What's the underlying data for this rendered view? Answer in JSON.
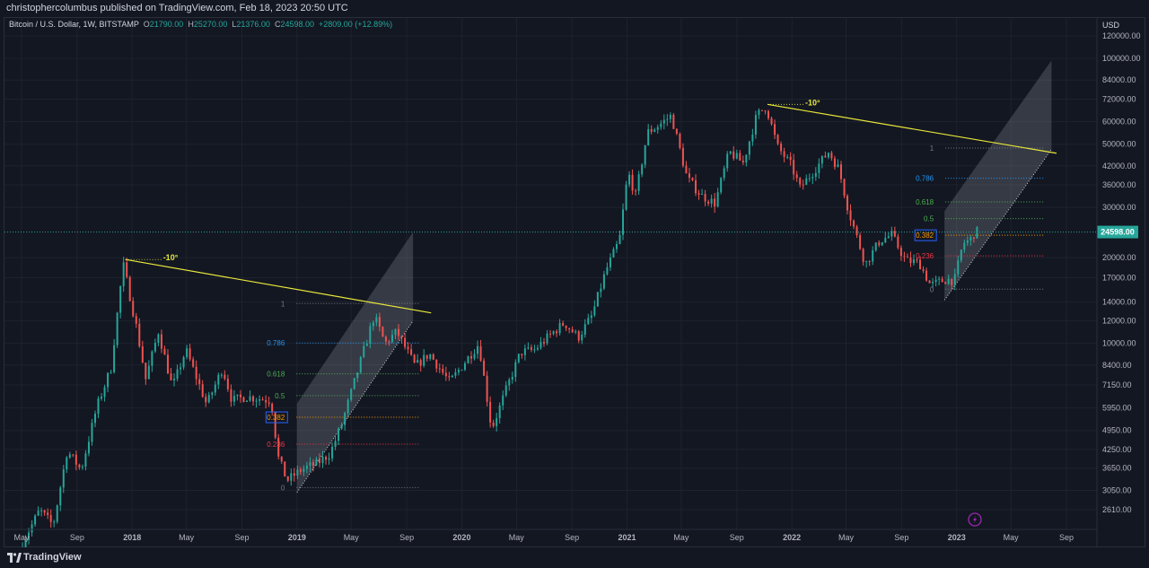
{
  "header": {
    "publisher_line": "christophercolumbus published on TradingView.com, Feb 18, 2023 20:50 UTC"
  },
  "symbol_legend": {
    "symbol": "Bitcoin / U.S. Dollar, 1W, BITSTAMP",
    "o_label": "O",
    "open": "21790.00",
    "h_label": "H",
    "high": "25270.00",
    "l_label": "L",
    "low": "21376.00",
    "c_label": "C",
    "close": "24598.00",
    "change": "+2809.00 (+12.89%)"
  },
  "footer": {
    "brand": "TradingView"
  },
  "colors": {
    "bg": "#131722",
    "up": "#26a69a",
    "down": "#ef5350",
    "trendline": "#e8e83a",
    "price_line": "#26a69a",
    "grid": "#1e222d"
  },
  "chart_data": {
    "type": "candlestick",
    "symbol": "BTCUSD",
    "interval": "1W",
    "scale": "log",
    "currency": "USD",
    "last_price": "24598.00",
    "x_tick_labels": [
      "May",
      "Sep",
      "2018",
      "May",
      "Sep",
      "2019",
      "May",
      "Sep",
      "2020",
      "May",
      "Sep",
      "2021",
      "May",
      "Sep",
      "2022",
      "May",
      "Sep",
      "2023",
      "May",
      "Sep"
    ],
    "x_tick_dates": [
      "2017-05-01",
      "2017-09-01",
      "2018-01-01",
      "2018-05-01",
      "2018-09-01",
      "2019-01-01",
      "2019-05-01",
      "2019-09-01",
      "2020-01-01",
      "2020-05-01",
      "2020-09-01",
      "2021-01-01",
      "2021-05-01",
      "2021-09-01",
      "2022-01-01",
      "2022-05-01",
      "2022-09-01",
      "2023-01-01",
      "2023-05-01",
      "2023-09-01"
    ],
    "y_tick_labels": [
      "120000.00",
      "100000.00",
      "84000.00",
      "72000.00",
      "60000.00",
      "50000.00",
      "42000.00",
      "36000.00",
      "30000.00",
      "20000.00",
      "17000.00",
      "14000.00",
      "12000.00",
      "10000.00",
      "8400.00",
      "7150.00",
      "5950.00",
      "4950.00",
      "4250.00",
      "3650.00",
      "3050.00",
      "2610.00"
    ],
    "y_tick_values": [
      120000,
      100000,
      84000,
      72000,
      60000,
      50000,
      42000,
      36000,
      30000,
      20000,
      17000,
      14000,
      12000,
      10000,
      8400,
      7150,
      5950,
      4950,
      4250,
      3650,
      3050,
      2610
    ],
    "price_path": [
      [
        "2017-05-01",
        1900
      ],
      [
        "2017-06-15",
        2600
      ],
      [
        "2017-07-15",
        2300
      ],
      [
        "2017-08-15",
        4200
      ],
      [
        "2017-09-15",
        3600
      ],
      [
        "2017-10-20",
        6000
      ],
      [
        "2017-11-20",
        8200
      ],
      [
        "2017-12-17",
        19000
      ],
      [
        "2018-01-15",
        11500
      ],
      [
        "2018-02-05",
        7500
      ],
      [
        "2018-03-05",
        11000
      ],
      [
        "2018-04-05",
        7000
      ],
      [
        "2018-05-05",
        9500
      ],
      [
        "2018-06-20",
        6100
      ],
      [
        "2018-07-25",
        8200
      ],
      [
        "2018-08-15",
        6300
      ],
      [
        "2018-09-15",
        6500
      ],
      [
        "2018-10-15",
        6400
      ],
      [
        "2018-11-10",
        6300
      ],
      [
        "2018-11-25",
        4000
      ],
      [
        "2018-12-15",
        3300
      ],
      [
        "2019-01-15",
        3600
      ],
      [
        "2019-02-20",
        3800
      ],
      [
        "2019-03-20",
        4100
      ],
      [
        "2019-04-15",
        5200
      ],
      [
        "2019-05-15",
        7500
      ],
      [
        "2019-06-26",
        12500
      ],
      [
        "2019-07-20",
        10000
      ],
      [
        "2019-08-15",
        11000
      ],
      [
        "2019-09-25",
        8300
      ],
      [
        "2019-10-26",
        9200
      ],
      [
        "2019-12-10",
        7300
      ],
      [
        "2020-01-15",
        8700
      ],
      [
        "2020-02-13",
        10000
      ],
      [
        "2020-03-12",
        5000
      ],
      [
        "2020-04-15",
        7000
      ],
      [
        "2020-05-15",
        9300
      ],
      [
        "2020-06-15",
        9500
      ],
      [
        "2020-07-28",
        11000
      ],
      [
        "2020-08-20",
        11800
      ],
      [
        "2020-09-20",
        10500
      ],
      [
        "2020-10-20",
        12500
      ],
      [
        "2020-11-20",
        18000
      ],
      [
        "2020-12-20",
        23000
      ],
      [
        "2021-01-08",
        40000
      ],
      [
        "2021-01-25",
        33000
      ],
      [
        "2021-02-20",
        55000
      ],
      [
        "2021-03-15",
        58000
      ],
      [
        "2021-04-14",
        63000
      ],
      [
        "2021-05-19",
        38000
      ],
      [
        "2021-06-20",
        33000
      ],
      [
        "2021-07-20",
        31000
      ],
      [
        "2021-08-20",
        47000
      ],
      [
        "2021-09-20",
        43000
      ],
      [
        "2021-10-20",
        63000
      ],
      [
        "2021-11-10",
        68000
      ],
      [
        "2021-12-05",
        49000
      ],
      [
        "2022-01-05",
        42000
      ],
      [
        "2022-01-24",
        35000
      ],
      [
        "2022-03-28",
        47000
      ],
      [
        "2022-04-20",
        41000
      ],
      [
        "2022-05-12",
        29000
      ],
      [
        "2022-06-18",
        19000
      ],
      [
        "2022-07-20",
        23000
      ],
      [
        "2022-08-15",
        24000
      ],
      [
        "2022-09-15",
        19500
      ],
      [
        "2022-10-15",
        19200
      ],
      [
        "2022-11-09",
        16000
      ],
      [
        "2022-12-15",
        16800
      ],
      [
        "2023-01-01",
        16600
      ],
      [
        "2023-01-20",
        22500
      ],
      [
        "2023-02-05",
        23000
      ],
      [
        "2023-02-15",
        24598
      ]
    ],
    "drawings": [
      {
        "type": "trend_line",
        "label": "-10°",
        "start": [
          "2017-12-17",
          19700
        ],
        "end": [
          "2019-10-25",
          12800
        ]
      },
      {
        "type": "trend_line",
        "label": "-10°",
        "start": [
          "2021-11-08",
          69000
        ],
        "end": [
          "2023-08-10",
          46500
        ]
      },
      {
        "type": "fib_retracement",
        "levels": [
          "1",
          "0.786",
          "0.618",
          "0.5",
          "0.382",
          "0.236",
          "0"
        ],
        "level_values": [
          1,
          0.786,
          0.618,
          0.5,
          0.382,
          0.236,
          0
        ],
        "low": 3120,
        "high": 13800,
        "start_date": "2018-12-15",
        "end_date": "2019-09-30"
      },
      {
        "type": "fib_retracement",
        "levels": [
          "1",
          "0.786",
          "0.618",
          "0.5",
          "0.382",
          "0.236",
          "0"
        ],
        "level_values": [
          1,
          0.786,
          0.618,
          0.5,
          0.382,
          0.236,
          0
        ],
        "low": 15500,
        "high": 48500,
        "start_date": "2022-11-21",
        "end_date": "2023-07-15"
      },
      {
        "type": "channel",
        "from_date": "2019-01-01",
        "to_date": "2019-09-15",
        "bottom_start": 3000,
        "bottom_end": 12000,
        "height_factor": 2.05
      },
      {
        "type": "channel",
        "from_date": "2022-12-05",
        "to_date": "2023-07-30",
        "bottom_start": 14200,
        "bottom_end": 48000,
        "height_factor": 2.05
      }
    ]
  }
}
